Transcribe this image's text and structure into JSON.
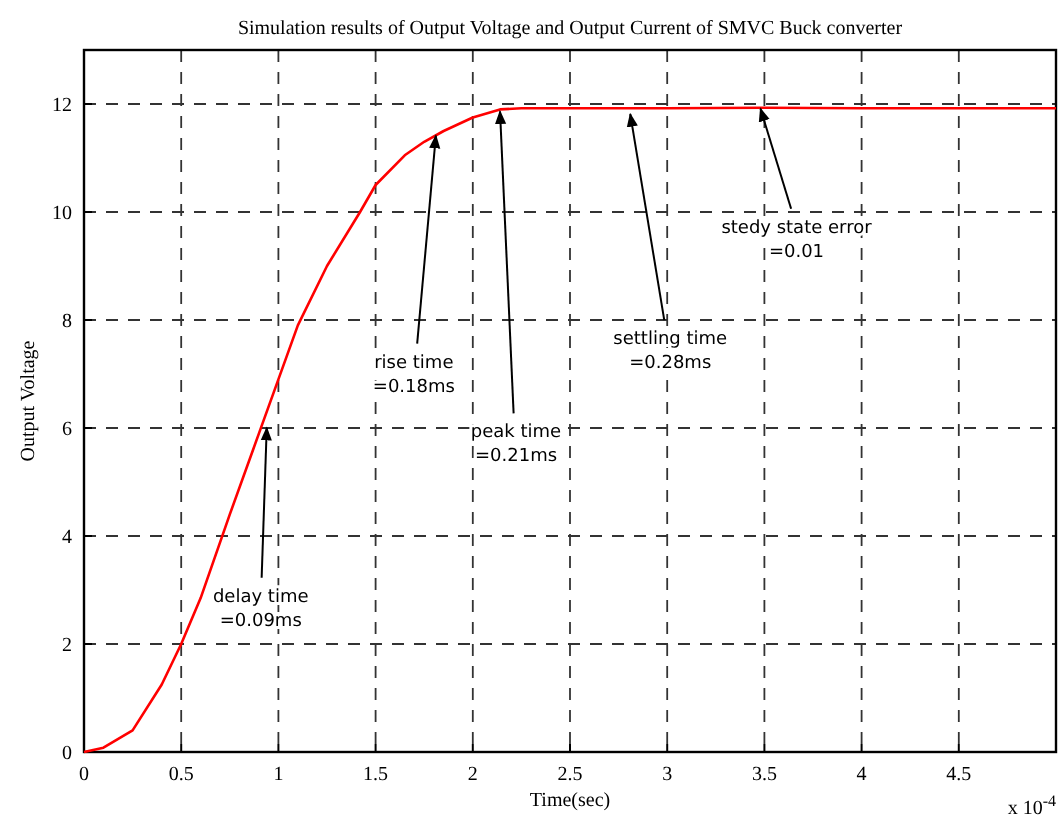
{
  "chart_data": {
    "type": "line",
    "title": "Simulation results of Output Voltage and Output Current of SMVC Buck converter",
    "xlabel": "Time(sec)",
    "ylabel": "Output Voltage",
    "x": [
      0,
      0.1,
      0.25,
      0.4,
      0.5,
      0.6,
      0.75,
      0.9,
      1,
      1.1,
      1.25,
      1.42,
      1.5,
      1.65,
      1.75,
      1.85,
      2,
      2.14,
      2.25,
      2.5,
      3,
      3.5,
      4,
      4.5,
      5
    ],
    "series": [
      {
        "color": "#ff0000",
        "values": [
          0,
          0.08,
          0.4,
          1.25,
          2,
          2.85,
          4.4,
          5.9,
          6.9,
          7.9,
          9.0,
          10,
          10.5,
          11.05,
          11.3,
          11.5,
          11.75,
          11.9,
          11.92,
          11.92,
          11.92,
          11.93,
          11.92,
          11.92,
          11.92
        ]
      }
    ],
    "xlim": [
      0,
      5
    ],
    "ylim": [
      0,
      13
    ],
    "xticks": [
      0,
      0.5,
      1,
      1.5,
      2,
      2.5,
      3,
      3.5,
      4,
      4.5
    ],
    "yticks": [
      0,
      2,
      4,
      6,
      8,
      10,
      12
    ],
    "grid": true,
    "line_style": "solid",
    "marker": "none",
    "annotations": [
      {
        "text": "delay time\n=0.09ms",
        "x": 0.94,
        "y": 6.04
      },
      {
        "text": "rise time\n=0.18ms",
        "x": 1.81,
        "y": 11.45
      },
      {
        "text": "peak time\n=0.21ms",
        "x": 2.14,
        "y": 11.9
      },
      {
        "text": "settling time\n=0.28ms",
        "x": 2.81,
        "y": 11.85
      },
      {
        "text": "stedy state error\n=0.01",
        "x": 3.48,
        "y": 11.95
      },
      "x 10$^{-4}$"
    ]
  }
}
